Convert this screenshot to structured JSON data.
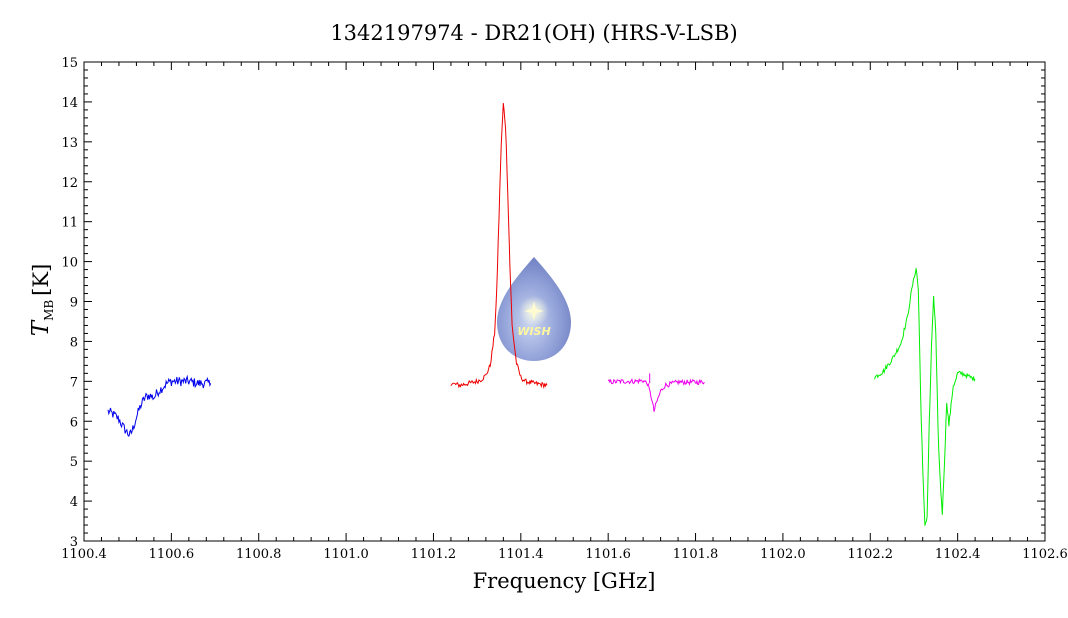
{
  "chart_data": {
    "type": "line",
    "title": "1342197974 - DR21(OH) (HRS-V-LSB)",
    "xlabel": "Frequency [GHz]",
    "ylabel_main": "T",
    "ylabel_sub": "MB",
    "ylabel_unit": "[K]",
    "xlim": [
      1100.4,
      1102.6
    ],
    "ylim": [
      3,
      15
    ],
    "x_ticks": [
      1100.4,
      1100.6,
      1100.8,
      1101.0,
      1101.2,
      1101.4,
      1101.6,
      1101.8,
      1102.0,
      1102.2,
      1102.4,
      1102.6
    ],
    "x_tick_labels": [
      "1100.4",
      "1100.6",
      "1100.8",
      "1101.0",
      "1101.2",
      "1101.4",
      "1101.6",
      "1101.8",
      "1102.0",
      "1102.2",
      "1102.4",
      "1102.6"
    ],
    "y_ticks": [
      3,
      4,
      5,
      6,
      7,
      8,
      9,
      10,
      11,
      12,
      13,
      14,
      15
    ],
    "y_tick_labels": [
      "3",
      "4",
      "5",
      "6",
      "7",
      "8",
      "9",
      "10",
      "11",
      "12",
      "13",
      "14",
      "15"
    ],
    "grid": false,
    "logo_text": "WISH",
    "series": [
      {
        "color": "#0000ee",
        "x": [
          1100.455,
          1100.47,
          1100.48,
          1100.49,
          1100.5,
          1100.505,
          1100.51,
          1100.52,
          1100.53,
          1100.54,
          1100.55,
          1100.56,
          1100.57,
          1100.58,
          1100.59,
          1100.6,
          1100.62,
          1100.64,
          1100.66,
          1100.69
        ],
        "y": [
          6.25,
          6.15,
          6.05,
          5.85,
          5.7,
          5.65,
          5.75,
          6.1,
          6.4,
          6.6,
          6.65,
          6.6,
          6.75,
          6.85,
          6.95,
          7.0,
          7.0,
          7.0,
          6.95,
          6.95
        ]
      },
      {
        "color": "#ee0000",
        "x": [
          1101.24,
          1101.26,
          1101.28,
          1101.3,
          1101.31,
          1101.32,
          1101.33,
          1101.34,
          1101.345,
          1101.35,
          1101.355,
          1101.36,
          1101.365,
          1101.37,
          1101.375,
          1101.38,
          1101.39,
          1101.4,
          1101.41,
          1101.43,
          1101.46
        ],
        "y": [
          6.95,
          6.9,
          6.95,
          7.0,
          7.05,
          7.15,
          7.4,
          8.2,
          9.3,
          11.1,
          12.9,
          13.95,
          13.4,
          11.8,
          9.9,
          8.4,
          7.45,
          7.1,
          7.0,
          6.95,
          6.9
        ]
      },
      {
        "color": "#ee00ee",
        "x": [
          1101.6,
          1101.63,
          1101.66,
          1101.68,
          1101.69,
          1101.7,
          1101.705,
          1101.71,
          1101.72,
          1101.73,
          1101.76,
          1101.79,
          1101.82
        ],
        "y": [
          6.98,
          7.0,
          7.0,
          7.02,
          6.95,
          6.55,
          6.25,
          6.45,
          6.75,
          6.9,
          6.98,
          6.98,
          6.98
        ],
        "hi_marker_x": 1101.695,
        "hi_marker_y": 7.2
      },
      {
        "color": "#00ee00",
        "x": [
          1102.21,
          1102.23,
          1102.25,
          1102.27,
          1102.285,
          1102.295,
          1102.305,
          1102.31,
          1102.315,
          1102.32,
          1102.325,
          1102.33,
          1102.335,
          1102.34,
          1102.345,
          1102.35,
          1102.355,
          1102.36,
          1102.365,
          1102.37,
          1102.375,
          1102.38,
          1102.385,
          1102.39,
          1102.395,
          1102.4,
          1102.41,
          1102.42,
          1102.44
        ],
        "y": [
          7.1,
          7.25,
          7.55,
          7.95,
          8.6,
          9.3,
          9.85,
          9.3,
          6.8,
          4.8,
          3.4,
          3.6,
          5.9,
          7.8,
          9.15,
          8.2,
          5.8,
          4.5,
          3.7,
          5.0,
          6.5,
          5.9,
          6.4,
          6.9,
          7.0,
          7.2,
          7.2,
          7.15,
          7.05
        ]
      }
    ]
  }
}
